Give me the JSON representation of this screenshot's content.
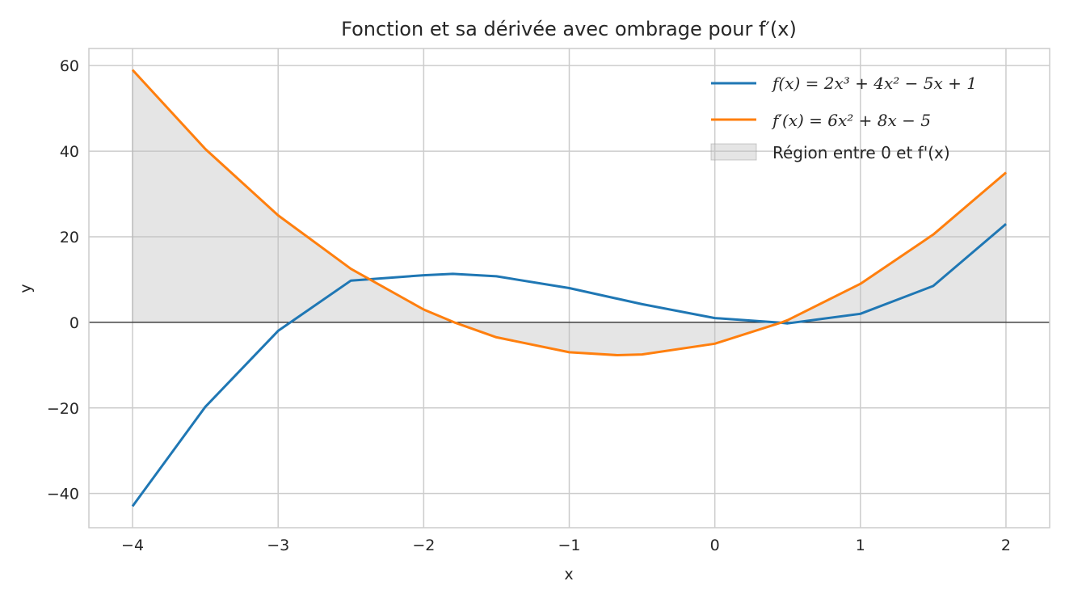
{
  "chart_data": {
    "type": "line",
    "title": "Fonction et sa dérivée avec ombrage pour f′(x)",
    "xlabel": "x",
    "ylabel": "y",
    "xlim": [
      -4.3,
      2.3
    ],
    "ylim": [
      -48,
      64
    ],
    "x_ticks": [
      -4,
      -3,
      -2,
      -1,
      0,
      1,
      2
    ],
    "x_tick_labels": [
      "−4",
      "−3",
      "−2",
      "−1",
      "0",
      "1",
      "2"
    ],
    "y_ticks": [
      -40,
      -20,
      0,
      20,
      40,
      60
    ],
    "y_tick_labels": [
      "−40",
      "−20",
      "0",
      "20",
      "40",
      "60"
    ],
    "grid": true,
    "legend_position": "top-right",
    "series": [
      {
        "name": "f(x) = 2x³ + 4x² − 5x + 1",
        "color": "#1f77b4",
        "x": [
          -4,
          -3.5,
          -3,
          -2.5,
          -2,
          -1.8,
          -1.5,
          -1,
          -0.5,
          0,
          0.45,
          0.5,
          1,
          1.5,
          2
        ],
        "y": [
          -43,
          -19.75,
          -2,
          9.75,
          11,
          11.32,
          10.75,
          8,
          4.25,
          1,
          -0.06,
          -0.25,
          2,
          8.5,
          23
        ]
      },
      {
        "name": "f′(x) = 6x² + 8x − 5",
        "color": "#ff7f0e",
        "x": [
          -4,
          -3.5,
          -3,
          -2.5,
          -2,
          -1.79,
          -1.5,
          -1,
          -0.67,
          -0.5,
          0,
          0.46,
          0.5,
          1,
          1.5,
          2
        ],
        "y": [
          59,
          40.5,
          25,
          12.5,
          3,
          0,
          -3.5,
          -7,
          -7.67,
          -7.5,
          -5,
          0,
          0.5,
          9,
          20.5,
          35
        ]
      }
    ],
    "fill": {
      "name": "Région entre 0 et f'(x)",
      "color": "#bdbdbd"
    }
  }
}
